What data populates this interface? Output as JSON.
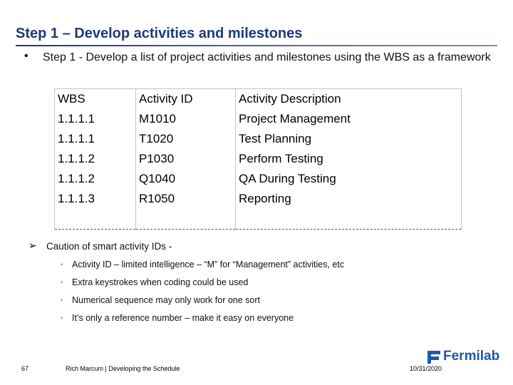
{
  "header": {
    "title": "Step 1 – Develop activities and milestones"
  },
  "bullet": "Step 1 - Develop a list of project activities and milestones using the WBS as a framework",
  "table": {
    "columns": [
      "WBS",
      "Activity ID",
      "Activity Description"
    ],
    "rows": [
      [
        "1.1.1.1",
        "M1010",
        "Project Management"
      ],
      [
        "1.1.1.1",
        "T1020",
        "Test Planning"
      ],
      [
        "1.1.1.2",
        "P1030",
        "Perform Testing"
      ],
      [
        "1.1.1.2",
        "Q1040",
        "QA During Testing"
      ],
      [
        "1.1.1.3",
        "R1050",
        "Reporting"
      ]
    ]
  },
  "caution": {
    "title": "Caution of smart activity IDs -",
    "items": [
      "Activity ID – limited intelligence – “M” for “Management” activities, etc",
      "Extra keystrokes when coding could be used",
      "Numerical sequence may only work for one sort",
      "It’s only a reference number – make it easy on everyone"
    ]
  },
  "footer": {
    "page": "67",
    "author": "Rich Marcum | Developing the Schedule",
    "logo": "Fermilab",
    "date": "10/31/2020"
  }
}
